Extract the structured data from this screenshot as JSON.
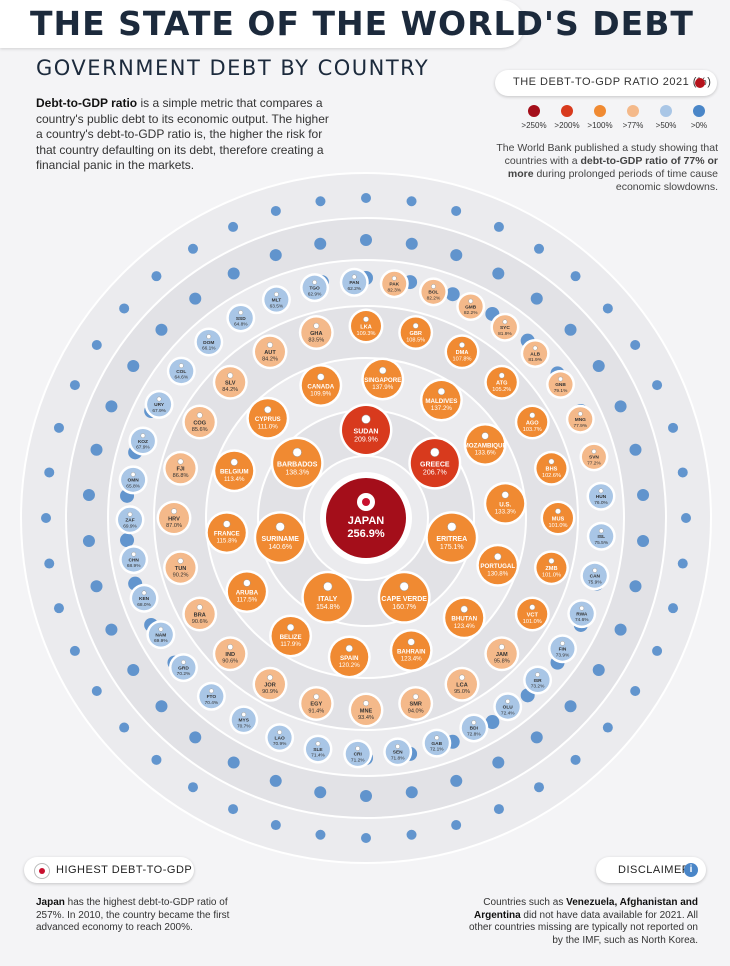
{
  "header": {
    "title": "THE STATE OF THE WORLD'S DEBT",
    "subtitle": "GOVERNMENT DEBT BY COUNTRY"
  },
  "intro": {
    "bold": "Debt-to-GDP ratio",
    "text": " is a simple metric that compares a country's public debt to its economic output. The higher a country's debt-to-GDP ratio is, the higher the risk for that country defaulting on its debt, therefore creating a financial panic in the markets."
  },
  "legend": {
    "title": "THE DEBT-TO-GDP RATIO 2021 (%)",
    "items": [
      {
        "label": ">250%",
        "color": "#a40e1a"
      },
      {
        "label": ">200%",
        "color": "#d83a1d"
      },
      {
        "label": ">100%",
        "color": "#f08a32"
      },
      {
        "label": ">77%",
        "color": "#f4b98a"
      },
      {
        "label": ">50%",
        "color": "#a9c6e6"
      },
      {
        "label": ">0%",
        "color": "#4a86c8"
      }
    ]
  },
  "world_bank_note": {
    "pre": "The World Bank published a study showing that countries with a ",
    "bold": "debt-to-GDP ratio of 77% or more",
    "post": " during prolonged periods of time cause economic slowdowns."
  },
  "highest": {
    "label": "HIGHEST DEBT-TO-GDP",
    "text_bold": "Japan",
    "text": " has the highest debt-to-GDP ratio of 257%. In 2010, the country became the first advanced economy to reach 200%."
  },
  "disclaimer": {
    "label": "DISCLAIMER",
    "pre": "Countries such as ",
    "bold": "Venezuela, Afghanistan and Argentina",
    "post": " did not have data available for 2021. All other countries missing are typically not reported on by the IMF, such as North Korea."
  },
  "chart_data": {
    "type": "bubble-rings",
    "title": "THE STATE OF THE WORLD'S DEBT",
    "subtitle": "GOVERNMENT DEBT BY COUNTRY",
    "unit": "%",
    "center": {
      "code": "JAPAN",
      "value": 256.9
    },
    "rings": [
      [
        {
          "code": "SUDAN",
          "value": 209.9
        },
        {
          "code": "GREECE",
          "value": 206.7
        },
        {
          "code": "ERITREA",
          "value": 175.1
        },
        {
          "code": "CAPE VERDE",
          "value": 160.7
        },
        {
          "code": "ITALY",
          "value": 154.8
        },
        {
          "code": "SURINAME",
          "value": 140.6
        },
        {
          "code": "BARBADOS",
          "value": 138.3
        }
      ],
      [
        {
          "code": "SINGAPORE",
          "value": 137.9
        },
        {
          "code": "MALDIVES",
          "value": 137.2
        },
        {
          "code": "MOZAMBIQUE",
          "value": 133.6
        },
        {
          "code": "U.S.",
          "value": 133.3
        },
        {
          "code": "PORTUGAL",
          "value": 130.8
        },
        {
          "code": "BHUTAN",
          "value": 123.4
        },
        {
          "code": "BAHRAIN",
          "value": 123.4
        },
        {
          "code": "SPAIN",
          "value": 120.2
        },
        {
          "code": "BELIZE",
          "value": 117.9
        },
        {
          "code": "ARUBA",
          "value": 117.5
        },
        {
          "code": "FRANCE",
          "value": 115.8
        },
        {
          "code": "BELGIUM",
          "value": 113.4
        },
        {
          "code": "CYPRUS",
          "value": 111.0
        },
        {
          "code": "CANADA",
          "value": 109.9
        }
      ],
      [
        {
          "code": "LKA",
          "value": 109.3
        },
        {
          "code": "GBR",
          "value": 108.5
        },
        {
          "code": "DMA",
          "value": 107.8
        },
        {
          "code": "ATG",
          "value": 105.2
        },
        {
          "code": "AGO",
          "value": 103.7
        },
        {
          "code": "BHS",
          "value": 102.6
        },
        {
          "code": "MUS",
          "value": 101.0
        },
        {
          "code": "ZMB",
          "value": 101.0
        },
        {
          "code": "VCT",
          "value": 101.0
        },
        {
          "code": "JAM",
          "value": 95.8
        },
        {
          "code": "LCA",
          "value": 95.0
        },
        {
          "code": "SMR",
          "value": 94.0
        },
        {
          "code": "MNE",
          "value": 93.4
        },
        {
          "code": "EGY",
          "value": 91.4
        },
        {
          "code": "JOR",
          "value": 90.9
        },
        {
          "code": "IND",
          "value": 90.6
        },
        {
          "code": "BRA",
          "value": 90.6
        },
        {
          "code": "TUN",
          "value": 90.2
        },
        {
          "code": "HRV",
          "value": 87.0
        },
        {
          "code": "FJI",
          "value": 86.8
        },
        {
          "code": "COG",
          "value": 85.6
        },
        {
          "code": "SLV",
          "value": 84.2
        },
        {
          "code": "AUT",
          "value": 84.2
        },
        {
          "code": "GHA",
          "value": 83.5
        }
      ],
      [
        {
          "code": "PAK",
          "value": 82.3
        },
        {
          "code": "BOL",
          "value": 82.2
        },
        {
          "code": "GMB",
          "value": 82.2
        },
        {
          "code": "SYC",
          "value": 81.9
        },
        {
          "code": "ALB",
          "value": 81.9
        },
        {
          "code": "GNB",
          "value": 79.1
        },
        {
          "code": "MNG",
          "value": 77.9
        },
        {
          "code": "SVN",
          "value": 77.2
        },
        {
          "code": "HUN",
          "value": 76.0
        },
        {
          "code": "ISL",
          "value": 75.5
        },
        {
          "code": "CAN",
          "value": 75.9
        },
        {
          "code": "RWA",
          "value": 74.6
        },
        {
          "code": "FIN",
          "value": 73.9
        },
        {
          "code": "ISR",
          "value": 73.2
        },
        {
          "code": "OLU",
          "value": 72.4
        },
        {
          "code": "BDI",
          "value": 72.8
        },
        {
          "code": "GAB",
          "value": 72.1
        },
        {
          "code": "SEN",
          "value": 71.8
        },
        {
          "code": "CRI",
          "value": 71.2
        },
        {
          "code": "SLE",
          "value": 71.4
        },
        {
          "code": "LAO",
          "value": 70.9
        },
        {
          "code": "MYS",
          "value": 70.7
        },
        {
          "code": "FTO",
          "value": 70.4
        },
        {
          "code": "GRD",
          "value": 70.2
        },
        {
          "code": "NAM",
          "value": 69.9
        },
        {
          "code": "KEN",
          "value": 68.0
        },
        {
          "code": "CHN",
          "value": 68.9
        },
        {
          "code": "ZAF",
          "value": 69.9
        },
        {
          "code": "OMN",
          "value": 65.8
        },
        {
          "code": "KOZ",
          "value": 67.9
        },
        {
          "code": "URY",
          "value": 67.9
        },
        {
          "code": "COL",
          "value": 64.6
        },
        {
          "code": "DOM",
          "value": 66.1
        },
        {
          "code": "SSD",
          "value": 64.8
        },
        {
          "code": "MLT",
          "value": 63.5
        },
        {
          "code": "TGO",
          "value": 62.9
        },
        {
          "code": "PAN",
          "value": 62.2
        }
      ]
    ]
  }
}
